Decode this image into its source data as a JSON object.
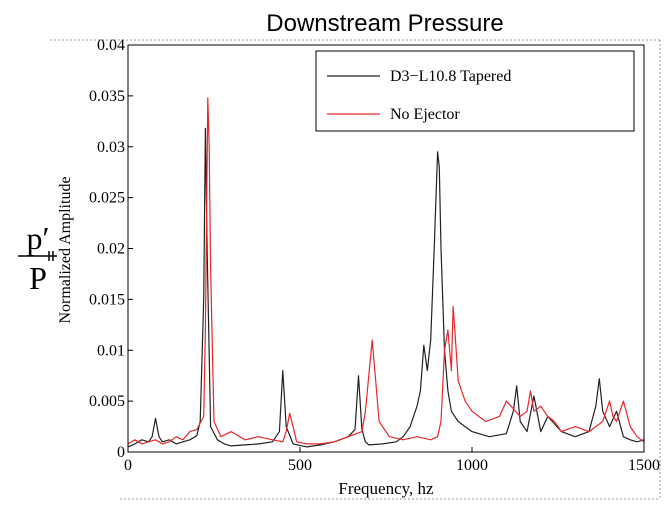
{
  "chart_data": {
    "type": "line",
    "title": "Downstream Pressure",
    "xlabel": "Frequency, hz",
    "ylabel": "Normalized Amplitude",
    "side_label": {
      "numerator": "p′",
      "denominator": "P"
    },
    "xlim": [
      0,
      1500
    ],
    "ylim": [
      0,
      0.04
    ],
    "xticks": [
      0,
      500,
      1000,
      1500
    ],
    "xtick_labels": [
      "0",
      "500",
      "1000",
      "1500"
    ],
    "yticks": [
      0,
      0.005,
      0.01,
      0.015,
      0.02,
      0.025,
      0.03,
      0.035,
      0.04
    ],
    "ytick_labels": [
      "0",
      "0.005",
      "0.01",
      "0.015",
      "0.02",
      "0.025",
      "0.03",
      "0.035",
      "0.04"
    ],
    "grid": false,
    "legend_position": "top-right",
    "series": [
      {
        "name": "D3−L10.8 Tapered",
        "color": "#222222",
        "x": [
          0,
          20,
          40,
          60,
          70,
          80,
          90,
          100,
          120,
          140,
          160,
          180,
          200,
          210,
          220,
          225,
          230,
          240,
          260,
          280,
          300,
          340,
          380,
          420,
          440,
          450,
          460,
          480,
          520,
          560,
          600,
          640,
          660,
          670,
          680,
          690,
          700,
          740,
          780,
          800,
          820,
          840,
          850,
          860,
          870,
          880,
          890,
          900,
          905,
          910,
          920,
          930,
          940,
          960,
          980,
          1000,
          1050,
          1100,
          1120,
          1130,
          1140,
          1160,
          1180,
          1200,
          1220,
          1260,
          1300,
          1340,
          1360,
          1370,
          1380,
          1400,
          1420,
          1440,
          1460,
          1480,
          1500
        ],
        "y": [
          0.0005,
          0.0008,
          0.0012,
          0.001,
          0.0015,
          0.0033,
          0.0015,
          0.001,
          0.0012,
          0.0008,
          0.001,
          0.0012,
          0.0016,
          0.003,
          0.015,
          0.0318,
          0.02,
          0.0025,
          0.0012,
          0.0008,
          0.0006,
          0.0007,
          0.0008,
          0.001,
          0.002,
          0.008,
          0.0025,
          0.0008,
          0.0005,
          0.0007,
          0.001,
          0.0015,
          0.0022,
          0.0075,
          0.0022,
          0.001,
          0.0007,
          0.0008,
          0.001,
          0.0015,
          0.0025,
          0.0045,
          0.006,
          0.0105,
          0.008,
          0.011,
          0.02,
          0.0295,
          0.028,
          0.02,
          0.01,
          0.006,
          0.004,
          0.003,
          0.0025,
          0.002,
          0.0015,
          0.0018,
          0.004,
          0.0065,
          0.003,
          0.002,
          0.0055,
          0.002,
          0.0035,
          0.002,
          0.0015,
          0.002,
          0.0045,
          0.0072,
          0.004,
          0.0025,
          0.004,
          0.0015,
          0.0012,
          0.001,
          0.0012
        ]
      },
      {
        "name": "No Ejector",
        "color": "#e8262a",
        "x": [
          0,
          20,
          40,
          60,
          80,
          100,
          120,
          140,
          160,
          180,
          200,
          220,
          225,
          232,
          236,
          240,
          250,
          270,
          300,
          340,
          380,
          420,
          450,
          460,
          470,
          480,
          490,
          520,
          560,
          600,
          640,
          680,
          690,
          700,
          710,
          720,
          730,
          760,
          800,
          840,
          880,
          900,
          910,
          920,
          930,
          940,
          945,
          950,
          960,
          980,
          1000,
          1040,
          1080,
          1100,
          1140,
          1160,
          1170,
          1180,
          1200,
          1220,
          1240,
          1260,
          1300,
          1340,
          1380,
          1400,
          1410,
          1420,
          1440,
          1460,
          1480,
          1500
        ],
        "y": [
          0.0008,
          0.0012,
          0.0008,
          0.001,
          0.0012,
          0.0008,
          0.001,
          0.0015,
          0.0012,
          0.002,
          0.0022,
          0.0035,
          0.012,
          0.0348,
          0.03,
          0.018,
          0.003,
          0.0015,
          0.002,
          0.0012,
          0.0015,
          0.0012,
          0.001,
          0.002,
          0.0038,
          0.0025,
          0.001,
          0.0008,
          0.0008,
          0.001,
          0.0015,
          0.002,
          0.004,
          0.0075,
          0.011,
          0.007,
          0.003,
          0.0015,
          0.0012,
          0.0015,
          0.0012,
          0.0015,
          0.003,
          0.01,
          0.012,
          0.008,
          0.0143,
          0.012,
          0.007,
          0.005,
          0.004,
          0.003,
          0.0035,
          0.005,
          0.0035,
          0.004,
          0.006,
          0.004,
          0.0045,
          0.0035,
          0.003,
          0.002,
          0.0025,
          0.002,
          0.003,
          0.005,
          0.0035,
          0.003,
          0.005,
          0.0025,
          0.0015,
          0.001
        ]
      }
    ]
  }
}
